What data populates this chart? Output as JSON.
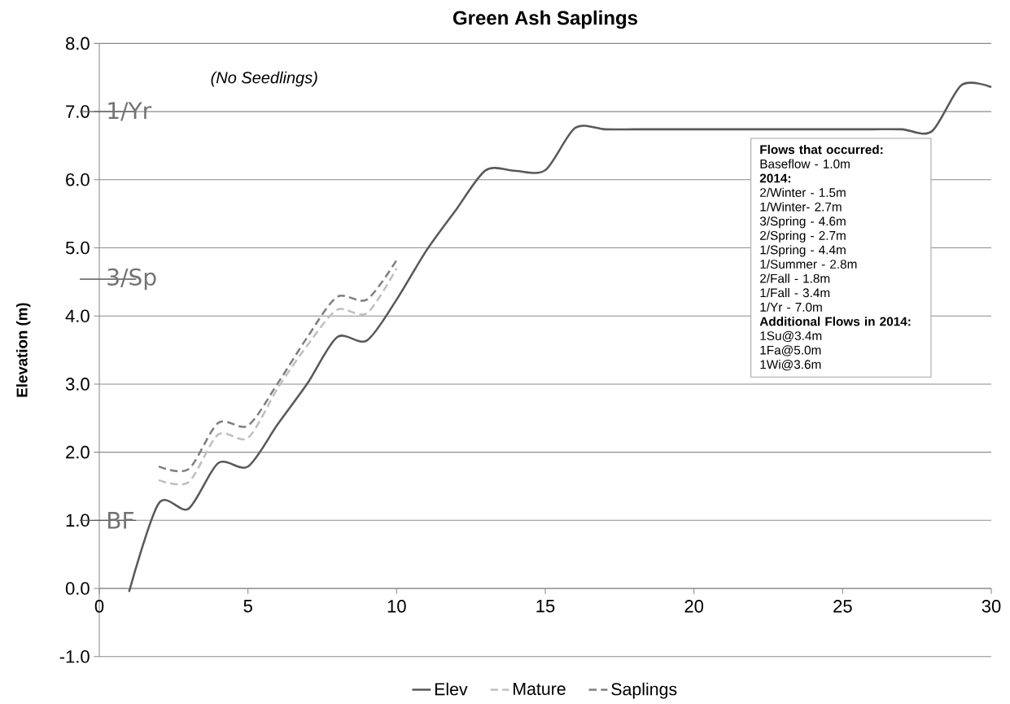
{
  "chart_data": {
    "type": "line",
    "title": "Green Ash Saplings",
    "subtitle": "(No Seedlings)",
    "ylabel": "Elevation (m)",
    "x": [
      1,
      2,
      3,
      4,
      5,
      6,
      7,
      8,
      9,
      10,
      11,
      12,
      13,
      14,
      15,
      16,
      17,
      18,
      19,
      20,
      21,
      22,
      23,
      24,
      25,
      26,
      27,
      28,
      29,
      30
    ],
    "series": [
      {
        "name": "Elev",
        "color": "#595959",
        "line_style": "solid",
        "values": [
          -0.05,
          1.25,
          1.17,
          1.84,
          1.79,
          2.41,
          3.01,
          3.69,
          3.64,
          4.24,
          4.96,
          5.56,
          6.14,
          6.13,
          6.14,
          6.76,
          6.74,
          6.74,
          6.74,
          6.74,
          6.74,
          6.74,
          6.74,
          6.74,
          6.74,
          6.74,
          6.74,
          6.71,
          7.39,
          7.36
        ]
      },
      {
        "name": "Mature",
        "color": "#bfbfbf",
        "line_style": "dashed",
        "x": [
          2,
          3,
          4,
          5,
          6,
          7,
          8,
          9,
          10
        ],
        "values": [
          1.59,
          1.56,
          2.26,
          2.21,
          2.94,
          3.57,
          4.09,
          4.04,
          4.7
        ]
      },
      {
        "name": "Saplings",
        "color": "#7f7f7f",
        "line_style": "dashed",
        "x": [
          2,
          3,
          4,
          5,
          6,
          7,
          8,
          9,
          10
        ],
        "values": [
          1.79,
          1.75,
          2.43,
          2.39,
          3.01,
          3.69,
          4.28,
          4.24,
          4.82
        ]
      }
    ],
    "xlim": [
      0,
      30
    ],
    "ylim": [
      -1,
      8
    ],
    "xticks": [
      0,
      5,
      10,
      15,
      20,
      25,
      30
    ],
    "yticks": [
      {
        "value": -1,
        "label": "-1.0"
      },
      {
        "value": 0,
        "label": "0.0"
      },
      {
        "value": 1,
        "label": "1.0"
      },
      {
        "value": 2,
        "label": "2.0"
      },
      {
        "value": 3,
        "label": "3.0"
      },
      {
        "value": 4,
        "label": "4.0"
      },
      {
        "value": 5,
        "label": "5.0"
      },
      {
        "value": 6,
        "label": "6.0"
      },
      {
        "value": 7,
        "label": "7.0"
      },
      {
        "value": 8,
        "label": "8.0"
      }
    ],
    "grid": "y",
    "legend": "bottom",
    "marker": "none",
    "ref_lines": [
      {
        "axis": "y",
        "value": 7.0,
        "label": "1/Yr",
        "color": "#595959"
      },
      {
        "axis": "y",
        "value": 4.54,
        "label": "3/Sp",
        "color": "#595959"
      },
      {
        "axis": "y",
        "value": 1.0,
        "label": "BF",
        "color": "#595959"
      }
    ],
    "annotations": [
      "**Flows that occurred:**",
      "Baseflow - 1.0m",
      "**2014:**",
      "2/Winter - 1.5m",
      "1/Winter- 2.7m",
      "3/Spring - 4.6m",
      "2/Spring - 2.7m",
      "1/Spring - 4.4m",
      "1/Summer - 2.8m",
      "2/Fall - 1.8m",
      "1/Fall - 3.4m",
      "1/Yr - 7.0m",
      "**Additional Flows in 2014:**",
      "1Su@3.4m",
      "1Fa@5.0m",
      "1Wi@3.6m"
    ]
  }
}
